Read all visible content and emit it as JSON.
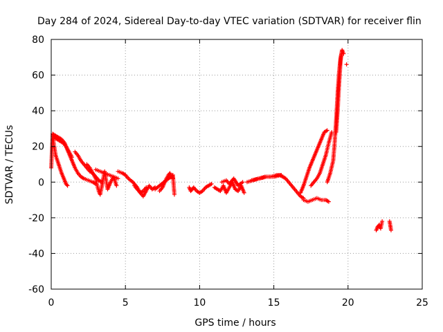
{
  "chart_data": {
    "type": "scatter",
    "title": "Day 284 of 2024, Sidereal Day-to-day VTEC variation (SDTVAR) for receiver flin",
    "xlabel": "GPS time / hours",
    "ylabel": "SDTVAR / TECUs",
    "xlim": [
      0,
      25
    ],
    "ylim": [
      -60,
      80
    ],
    "xticks": [
      0,
      5,
      10,
      15,
      20,
      25
    ],
    "yticks": [
      -60,
      -40,
      -20,
      0,
      20,
      40,
      60,
      80
    ],
    "grid": true,
    "marker": "+",
    "color": "#ff0000",
    "series": [
      {
        "name": "SDTVAR",
        "traces": [
          {
            "x": [
              0,
              0.1,
              0.2,
              0.3,
              0.5,
              0.7,
              0.9,
              1.0,
              1.1
            ],
            "y": [
              8,
              27,
              20,
              15,
              10,
              5,
              1,
              -1,
              -2
            ]
          },
          {
            "x": [
              0.1,
              0.3,
              0.5,
              0.7,
              0.9,
              1.0,
              1.2,
              1.4,
              1.6,
              1.8,
              2.0,
              2.2,
              2.5,
              2.8,
              3.0
            ],
            "y": [
              27,
              26,
              25,
              24,
              22,
              20,
              16,
              12,
              8,
              5,
              3,
              2,
              1,
              0,
              -1
            ]
          },
          {
            "x": [
              0.2,
              0.4,
              0.6,
              0.8,
              1.0,
              1.2,
              1.4
            ],
            "y": [
              25,
              24,
              23,
              22,
              20,
              17,
              14
            ]
          },
          {
            "x": [
              1.6,
              1.8,
              2.0,
              2.2,
              2.4,
              2.6,
              2.8,
              3.0,
              3.2,
              3.4
            ],
            "y": [
              17,
              15,
              12,
              10,
              8,
              6,
              5,
              3,
              1,
              0
            ]
          },
          {
            "x": [
              2.4,
              2.6,
              2.8,
              3.0,
              3.1,
              3.2,
              3.3,
              3.4,
              3.5,
              3.6,
              3.8,
              4.0,
              4.2,
              4.4
            ],
            "y": [
              10,
              8,
              5,
              2,
              -2,
              -5,
              -7,
              -3,
              2,
              6,
              -4,
              0,
              3,
              -2
            ]
          },
          {
            "x": [
              3.0,
              3.3,
              3.6,
              3.9,
              4.2,
              4.5
            ],
            "y": [
              7,
              6,
              5,
              4,
              3,
              2
            ]
          },
          {
            "x": [
              4.5,
              4.8,
              5.0,
              5.2,
              5.5,
              5.8,
              6.0,
              6.2,
              6.4,
              6.6,
              6.8,
              7.0
            ],
            "y": [
              6,
              5,
              4,
              2,
              0,
              -3,
              -6,
              -8,
              -5,
              -2,
              -4,
              -3
            ]
          },
          {
            "x": [
              5.6,
              5.8,
              6.0,
              6.2,
              6.4
            ],
            "y": [
              -2,
              -4,
              -6,
              -5,
              -3
            ]
          },
          {
            "x": [
              7.0,
              7.3,
              7.6,
              7.9,
              8.1,
              8.2,
              8.3
            ],
            "y": [
              -4,
              -2,
              0,
              2,
              3,
              4,
              -7
            ]
          },
          {
            "x": [
              7.3,
              7.5,
              7.7,
              7.9,
              8.0,
              8.2
            ],
            "y": [
              -5,
              -3,
              1,
              4,
              5,
              2
            ]
          },
          {
            "x": [
              9.3,
              9.4,
              9.5,
              9.6,
              9.8,
              10.0,
              10.2,
              10.4,
              10.6,
              10.8
            ],
            "y": [
              -3,
              -5,
              -4,
              -3,
              -5,
              -6,
              -5,
              -3,
              -2,
              -1
            ]
          },
          {
            "x": [
              11.0,
              11.2,
              11.4,
              11.6,
              11.8,
              12.0,
              12.2,
              12.4,
              12.6,
              12.8,
              13.0
            ],
            "y": [
              -3,
              -4,
              -5,
              -2,
              -6,
              -3,
              0,
              -4,
              -5,
              -2,
              -6
            ]
          },
          {
            "x": [
              11.5,
              11.8,
              12.0,
              12.3,
              12.6,
              12.9
            ],
            "y": [
              0,
              1,
              -1,
              2,
              -2,
              0
            ]
          },
          {
            "x": [
              13.2,
              13.6,
              14.0,
              14.4,
              14.8,
              15.2,
              15.4,
              15.6,
              15.8,
              16.0,
              16.2,
              16.4,
              16.6,
              16.8,
              17.0
            ],
            "y": [
              0,
              1,
              2,
              3,
              3,
              4,
              4,
              3,
              2,
              0,
              -2,
              -4,
              -6,
              -8,
              -9
            ]
          },
          {
            "x": [
              13.5,
              14.0,
              14.5,
              15.0,
              15.5
            ],
            "y": [
              1,
              2,
              3,
              3,
              4
            ]
          },
          {
            "x": [
              17.0,
              17.3,
              17.6,
              17.9,
              18.2,
              18.5,
              18.7
            ],
            "y": [
              -10,
              -11,
              -10,
              -9,
              -10,
              -10,
              -11
            ]
          },
          {
            "x": [
              16.8,
              17.0,
              17.2,
              17.4,
              17.6,
              17.8,
              18.0,
              18.2,
              18.4,
              18.6
            ],
            "y": [
              -6,
              -2,
              3,
              8,
              12,
              16,
              20,
              24,
              28,
              29
            ]
          },
          {
            "x": [
              17.5,
              17.7,
              17.9,
              18.1,
              18.3,
              18.5,
              18.7,
              18.9
            ],
            "y": [
              -2,
              0,
              2,
              5,
              10,
              15,
              22,
              28
            ]
          },
          {
            "x": [
              18.6,
              18.8,
              19.0,
              19.1,
              19.2,
              19.3,
              19.4,
              19.5,
              19.6,
              19.7
            ],
            "y": [
              0,
              5,
              12,
              22,
              35,
              50,
              62,
              70,
              74,
              72
            ]
          },
          {
            "x": [
              19.2,
              19.3,
              19.4,
              19.5,
              19.6
            ],
            "y": [
              28,
              40,
              55,
              68,
              74
            ]
          },
          {
            "x": [
              19.9
            ],
            "y": [
              66
            ]
          },
          {
            "x": [
              21.9,
              22.0,
              22.1,
              22.2,
              22.3
            ],
            "y": [
              -27,
              -25,
              -24,
              -26,
              -22
            ]
          },
          {
            "x": [
              22.8,
              22.9
            ],
            "y": [
              -22,
              -27
            ]
          }
        ]
      }
    ]
  }
}
